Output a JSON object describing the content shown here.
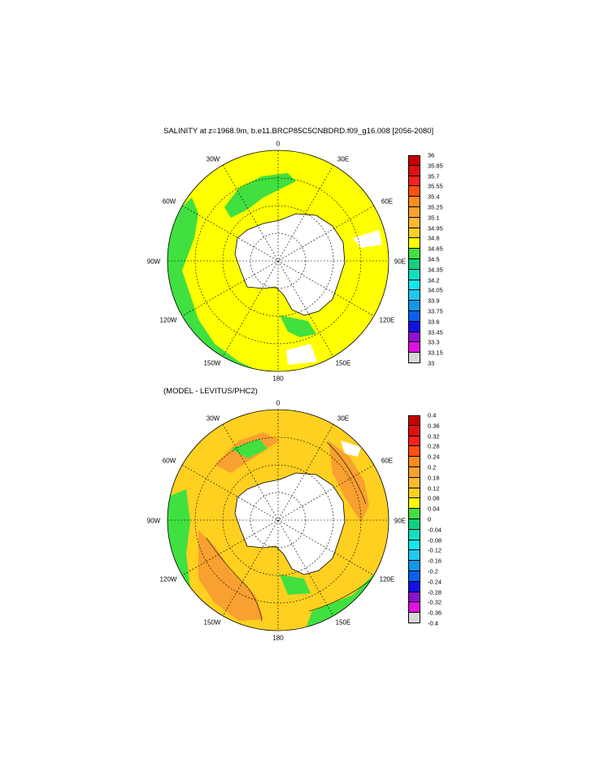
{
  "panel1": {
    "title": "SALINITY at z=1968.9m, b.e11.BRCP85C5CNBDRD.f09_g16.008 [2056-2080]",
    "lon_labels": [
      "0",
      "30E",
      "60E",
      "90E",
      "120E",
      "150E",
      "180",
      "150W",
      "120W",
      "90W",
      "60W",
      "30W"
    ],
    "colorbar": {
      "labels": [
        "36",
        "35.85",
        "35.7",
        "35.55",
        "35.4",
        "35.25",
        "35.1",
        "34.95",
        "34.8",
        "34.65",
        "34.5",
        "34.35",
        "34.2",
        "34.05",
        "33.9",
        "33.75",
        "33.6",
        "33.45",
        "33.3",
        "33.15",
        "33"
      ],
      "colors": [
        "#c80000",
        "#e01010",
        "#ff2020",
        "#ff5010",
        "#ff8a20",
        "#f8a030",
        "#ffb830",
        "#ffd020",
        "#ffff00",
        "#40e040",
        "#10d080",
        "#10e0c0",
        "#10e8f0",
        "#20c8f0",
        "#1098e8",
        "#0860f0",
        "#1010e8",
        "#9010d0",
        "#e010e0",
        "#d8d8d8",
        "#707070"
      ]
    }
  },
  "panel2": {
    "title": "(MODEL - LEVITUS/PHC2)",
    "lon_labels": [
      "0",
      "30E",
      "60E",
      "90E",
      "120E",
      "150E",
      "180",
      "150W",
      "120W",
      "90W",
      "60W",
      "30W"
    ],
    "colorbar": {
      "labels": [
        "0.4",
        "0.36",
        "0.32",
        "0.28",
        "0.24",
        "0.2",
        "0.16",
        "0.12",
        "0.08",
        "0.04",
        "0",
        "-0.04",
        "-0.08",
        "-0.12",
        "-0.16",
        "-0.2",
        "-0.24",
        "-0.28",
        "-0.32",
        "-0.36",
        "-0.4"
      ],
      "colors": [
        "#c80000",
        "#e01010",
        "#ff2020",
        "#ff5010",
        "#ff8a20",
        "#f8a030",
        "#ffb830",
        "#ffd020",
        "#ffff00",
        "#40e040",
        "#10d080",
        "#10e0c0",
        "#10e8f0",
        "#20c8f0",
        "#1098e8",
        "#0860f0",
        "#1010e8",
        "#9010d0",
        "#e010e0",
        "#d8d8d8",
        "#707070"
      ]
    }
  }
}
